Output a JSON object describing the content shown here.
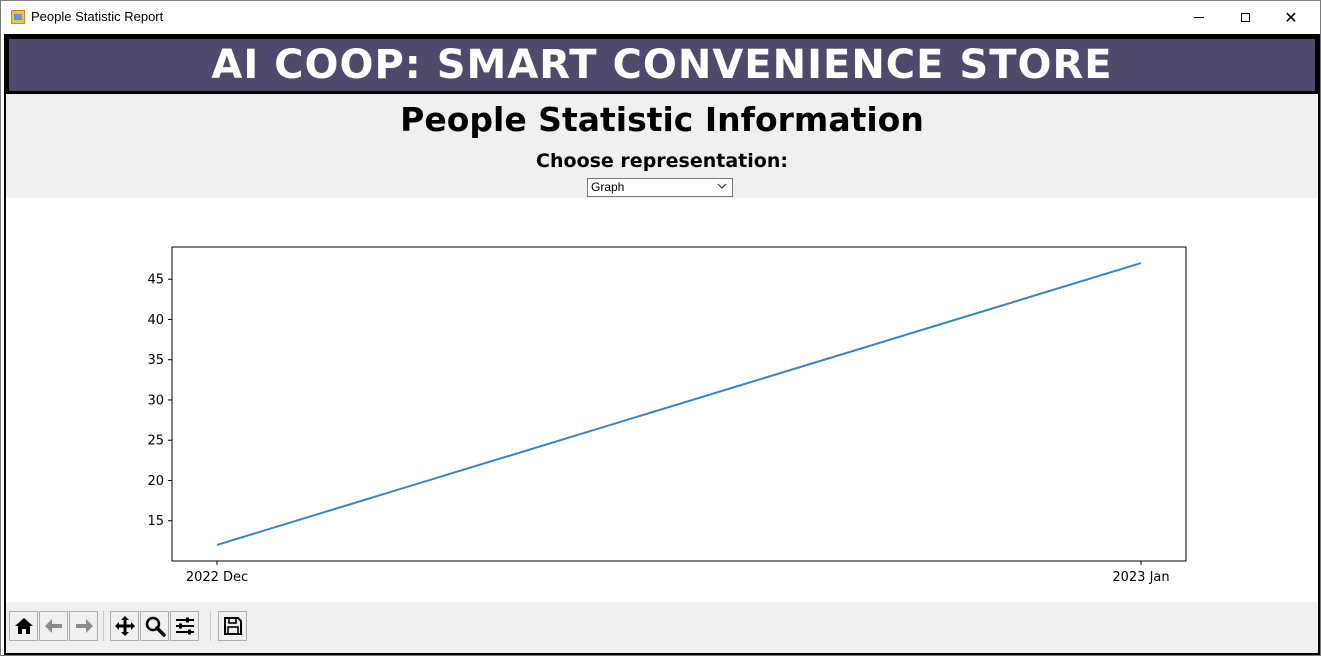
{
  "window": {
    "title": "People Statistic Report"
  },
  "banner": {
    "text": "AI COOP: SMART CONVENIENCE STORE"
  },
  "header": {
    "title": "People Statistic Information",
    "choose_label": "Choose representation:",
    "select_value": "Graph"
  },
  "chart_data": {
    "type": "line",
    "x": [
      "2022 Dec",
      "2023 Jan"
    ],
    "series": [
      {
        "values": [
          12,
          47
        ],
        "color": "#3a85be"
      }
    ],
    "title": "",
    "xlabel": "",
    "ylabel": "",
    "ylim": [
      10,
      49
    ],
    "yticks": [
      15,
      20,
      25,
      30,
      35,
      40,
      45
    ],
    "grid": false
  },
  "toolbar": {
    "buttons": [
      {
        "name": "home-button",
        "icon": "home-icon"
      },
      {
        "name": "back-button",
        "icon": "arrow-left-icon"
      },
      {
        "name": "forward-button",
        "icon": "arrow-right-icon"
      },
      {
        "name": "pan-button",
        "icon": "move-icon"
      },
      {
        "name": "zoom-button",
        "icon": "magnifier-icon"
      },
      {
        "name": "configure-subplots-button",
        "icon": "sliders-icon"
      },
      {
        "name": "save-button",
        "icon": "floppy-disk-icon"
      }
    ]
  }
}
